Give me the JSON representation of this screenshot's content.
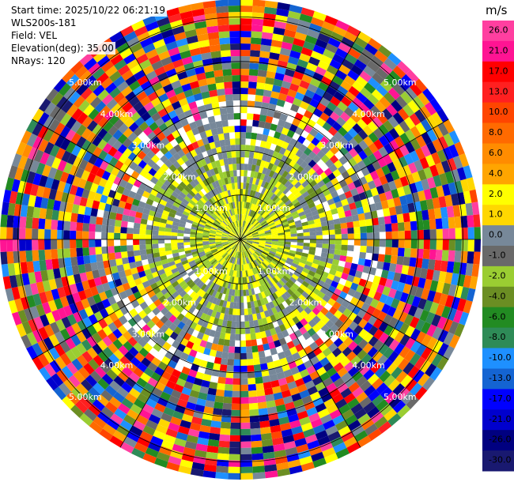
{
  "info": {
    "start_time": "Start time: 2025/10/22 06:21:19",
    "instrument": "WLS200s-181",
    "field": "Field: VEL",
    "elevation": "Elevation(deg): 35.00",
    "nrays": "NRays: 120"
  },
  "chart_data": {
    "type": "heatmap",
    "projection": "polar-ppi",
    "field": "VEL",
    "elevation_deg": 35.0,
    "n_rays": 120,
    "range_rings_km": [
      1.0,
      2.0,
      3.0,
      4.0,
      5.0
    ],
    "ring_labels": [
      "1.00km",
      "2.00km",
      "3.00km",
      "4.00km",
      "5.00km"
    ],
    "max_range_km": 5.4,
    "colorbar": {
      "unit": "m/s",
      "ticks": [
        "26.0",
        "21.0",
        "17.0",
        "13.0",
        "10.0",
        "8.0",
        "6.0",
        "4.0",
        "2.0",
        "1.0",
        "0.0",
        "-1.0",
        "-2.0",
        "-4.0",
        "-6.0",
        "-8.0",
        "-10.0",
        "-13.0",
        "-17.0",
        "-21.0",
        "-26.0",
        "-30.0"
      ],
      "colors": [
        "#ff3fa0",
        "#ff1493",
        "#ff0000",
        "#ff2020",
        "#ff4500",
        "#ff6a00",
        "#ff8c00",
        "#ffa500",
        "#ffff00",
        "#ffd700",
        "#778899",
        "#696969",
        "#9acd32",
        "#6b8e23",
        "#228b22",
        "#2e8b57",
        "#1e90ff",
        "#1464d2",
        "#0000ff",
        "#0000cd",
        "#000080",
        "#191970"
      ]
    }
  }
}
